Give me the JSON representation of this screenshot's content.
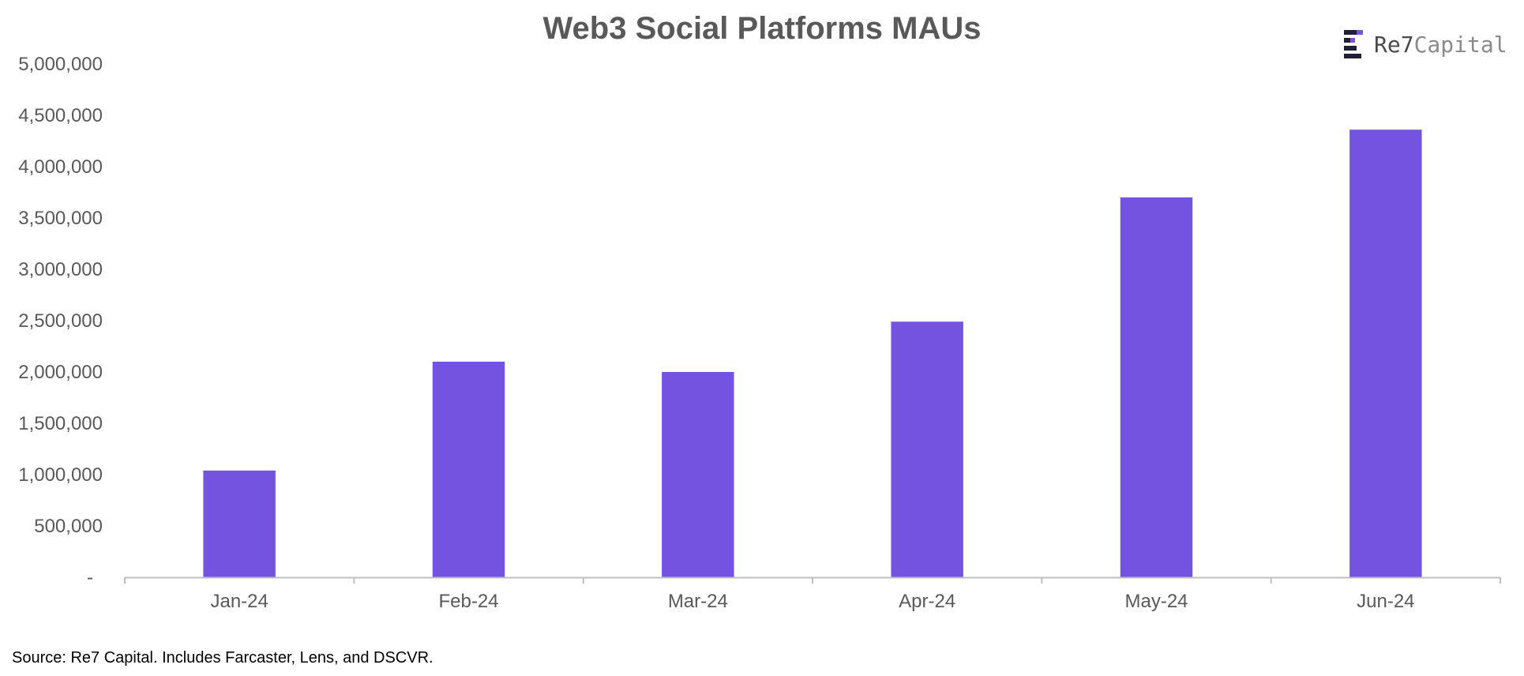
{
  "chart_data": {
    "type": "bar",
    "title": "Web3 Social Platforms MAUs",
    "xlabel": "",
    "ylabel": "",
    "categories": [
      "Jan-24",
      "Feb-24",
      "Mar-24",
      "Apr-24",
      "May-24",
      "Jun-24"
    ],
    "values": [
      1040000,
      2100000,
      2000000,
      2490000,
      3700000,
      4360000
    ],
    "ylim": [
      0,
      5000000
    ],
    "yticks": [
      0,
      500000,
      1000000,
      1500000,
      2000000,
      2500000,
      3000000,
      3500000,
      4000000,
      4500000,
      5000000
    ],
    "ytick_labels": [
      "-",
      "500,000",
      "1,000,000",
      "1,500,000",
      "2,000,000",
      "2,500,000",
      "3,000,000",
      "3,500,000",
      "4,000,000",
      "4,500,000",
      "5,000,000"
    ],
    "grid": false,
    "legend": "none",
    "bar_color": "#7553E1"
  },
  "logo": {
    "text_main": "Re7",
    "text_secondary": "Capital",
    "colors": [
      "#1f1f3a",
      "#7553E1"
    ]
  },
  "source_note": "Source: Re7 Capital. Includes Farcaster, Lens, and DSCVR.",
  "colors": {
    "axis": "#bfbfbf",
    "text": "#595959",
    "bar": "#7553E1"
  }
}
